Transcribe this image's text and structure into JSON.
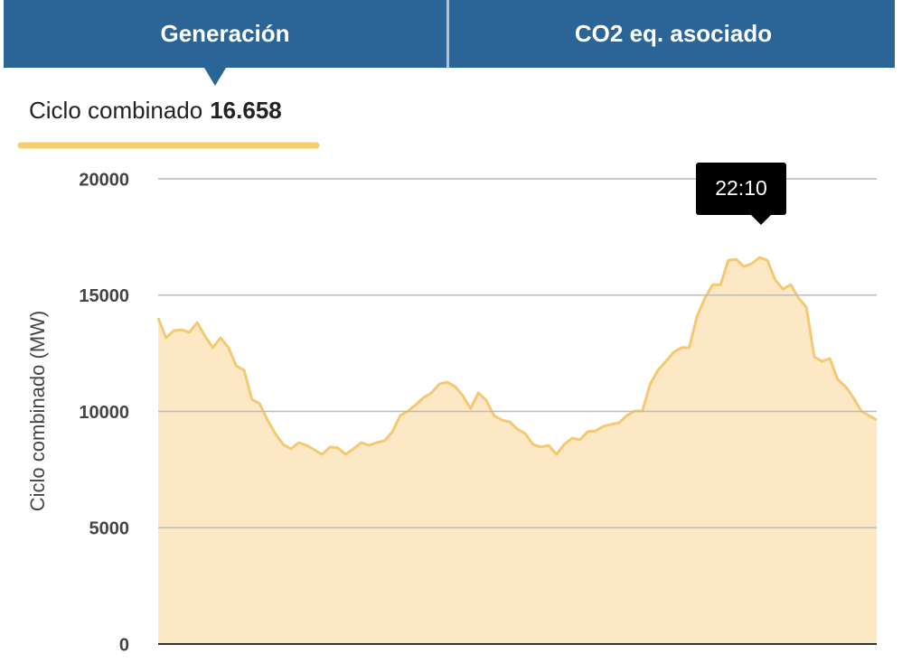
{
  "tabs": [
    "Generación",
    "CO2 eq. asociado"
  ],
  "selection": {
    "label": "Ciclo combinado",
    "value": "16.658"
  },
  "chart_data": {
    "type": "area",
    "ylabel": "Ciclo combinado (MW)",
    "annotation": "22:10",
    "color": "#f5c971",
    "fill": "#fce8c4",
    "grid": true,
    "ylim": [
      0,
      20000
    ],
    "yticks": [
      0,
      5000,
      10000,
      15000,
      20000
    ],
    "values": [
      14020,
      13160,
      13470,
      13510,
      13400,
      13820,
      13240,
      12740,
      13160,
      12740,
      11960,
      11770,
      10520,
      10330,
      9630,
      9050,
      8580,
      8390,
      8660,
      8540,
      8350,
      8150,
      8470,
      8430,
      8150,
      8390,
      8660,
      8540,
      8660,
      8740,
      9130,
      9820,
      10020,
      10290,
      10600,
      10800,
      11180,
      11260,
      11070,
      10680,
      10130,
      10800,
      10480,
      9820,
      9630,
      9550,
      9240,
      9050,
      8580,
      8470,
      8540,
      8150,
      8580,
      8850,
      8780,
      9130,
      9160,
      9360,
      9440,
      9510,
      9820,
      10020,
      10020,
      11180,
      11770,
      12150,
      12540,
      12740,
      12740,
      14100,
      14870,
      15450,
      15450,
      16500,
      16540,
      16230,
      16350,
      16620,
      16500,
      15650,
      15260,
      15450,
      14870,
      14480,
      12350,
      12150,
      12270,
      11380,
      11070,
      10600,
      10020,
      9820,
      9630
    ]
  }
}
